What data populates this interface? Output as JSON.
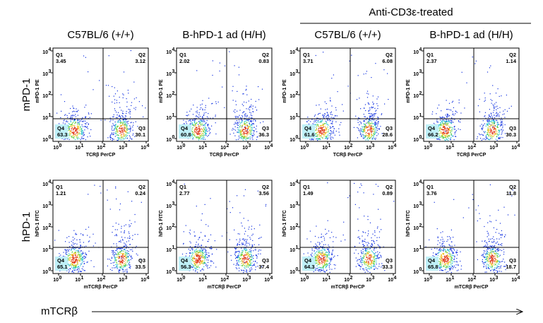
{
  "header_group": "Anti-CD3ε-treated",
  "columns": [
    "C57BL/6 (+/+)",
    "B-hPD-1 ad (H/H)",
    "C57BL/6 (+/+)",
    "B-hPD-1 ad (H/H)"
  ],
  "quadrant_names": [
    "Q1",
    "Q2",
    "Q3",
    "Q4"
  ],
  "tick_base": "10",
  "ticks": [
    0,
    1,
    2,
    3,
    4
  ],
  "rows": [
    {
      "label": "mPD-1",
      "y_axis": "mPD-1 PE",
      "x_axis": "TCRβ PerCP",
      "panels": [
        [
          3.45,
          3.12,
          30.1,
          63.3
        ],
        [
          2.02,
          0.83,
          36.3,
          60.8
        ],
        [
          3.71,
          6.08,
          28.6,
          61.6
        ],
        [
          2.37,
          1.14,
          30.3,
          66.2
        ]
      ]
    },
    {
      "label": "hPD-1",
      "y_axis": "hPD-1 FITC",
      "x_axis": "mTCRβ PerCP",
      "panels": [
        [
          1.21,
          0.24,
          33.5,
          65.1
        ],
        [
          2.77,
          3.56,
          37.4,
          56.3
        ],
        [
          1.49,
          0.89,
          33.3,
          64.3
        ],
        [
          3.76,
          11.8,
          18.7,
          65.8
        ]
      ]
    }
  ],
  "bottom_label": "mTCRβ"
}
